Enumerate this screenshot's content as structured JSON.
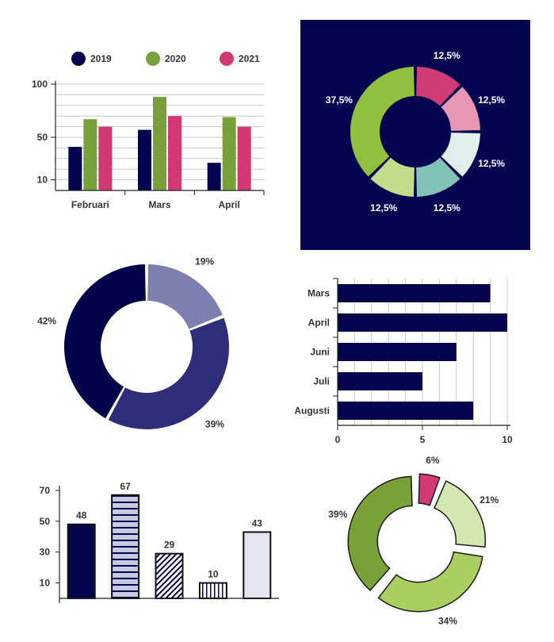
{
  "colors": {
    "navy": "#05054f",
    "green": "#79a13a",
    "pink": "#d23874",
    "grid": "#c8c8c8",
    "axis": "#222222",
    "text": "#333333",
    "white": "#ffffff"
  },
  "chart_data": [
    {
      "type": "bar",
      "categories": [
        "Februari",
        "Mars",
        "April"
      ],
      "series": [
        {
          "name": "2019",
          "values": [
            41,
            57,
            26
          ],
          "color": "#05054f"
        },
        {
          "name": "2020",
          "values": [
            67,
            88,
            69
          ],
          "color": "#79a13a"
        },
        {
          "name": "2021",
          "values": [
            60,
            70,
            60
          ],
          "color": "#d23874"
        }
      ],
      "yticks": [
        10,
        50,
        100
      ],
      "ylim": [
        0,
        100
      ],
      "grid": true,
      "legend": "top"
    },
    {
      "type": "pie",
      "style": "donut",
      "background": "#05054f",
      "labels": [
        "12,5%",
        "12,5%",
        "12,5%",
        "12,5%",
        "12,5%",
        "37,5%"
      ],
      "values": [
        12.5,
        12.5,
        12.5,
        12.5,
        12.5,
        37.5
      ],
      "colors": [
        "#d23c76",
        "#e797b4",
        "#dff0ec",
        "#83c3b7",
        "#c2de8c",
        "#8fc13e"
      ],
      "label_color": "#ffffff"
    },
    {
      "type": "pie",
      "style": "donut",
      "labels": [
        "19%",
        "39%",
        "42%"
      ],
      "values": [
        19,
        39,
        42
      ],
      "colors": [
        "#7c7fb0",
        "#2e2d7a",
        "#03034c"
      ]
    },
    {
      "type": "bar",
      "orientation": "horizontal",
      "categories": [
        "Mars",
        "April",
        "Juni",
        "Juli",
        "Augusti"
      ],
      "values": [
        9,
        10,
        7,
        5,
        8
      ],
      "xticks": [
        0,
        5,
        10
      ],
      "xlim": [
        0,
        10
      ],
      "grid": true,
      "color": "#05054f"
    },
    {
      "type": "bar",
      "values": [
        48,
        67,
        29,
        10,
        43
      ],
      "data_labels": [
        "48",
        "67",
        "29",
        "10",
        "43"
      ],
      "fills": [
        "solid-navy",
        "horizontal-stripes",
        "diagonal-hatch",
        "vertical-stripes",
        "solid-light"
      ],
      "yticks": [
        10,
        30,
        50,
        70
      ],
      "ylim": [
        0,
        70
      ]
    },
    {
      "type": "pie",
      "style": "donut",
      "exploded": true,
      "labels": [
        "6%",
        "21%",
        "34%",
        "39%"
      ],
      "values": [
        6,
        21,
        34,
        39
      ],
      "colors": [
        "#d23874",
        "#d3e7b0",
        "#a9cf61",
        "#79a13a"
      ]
    }
  ]
}
